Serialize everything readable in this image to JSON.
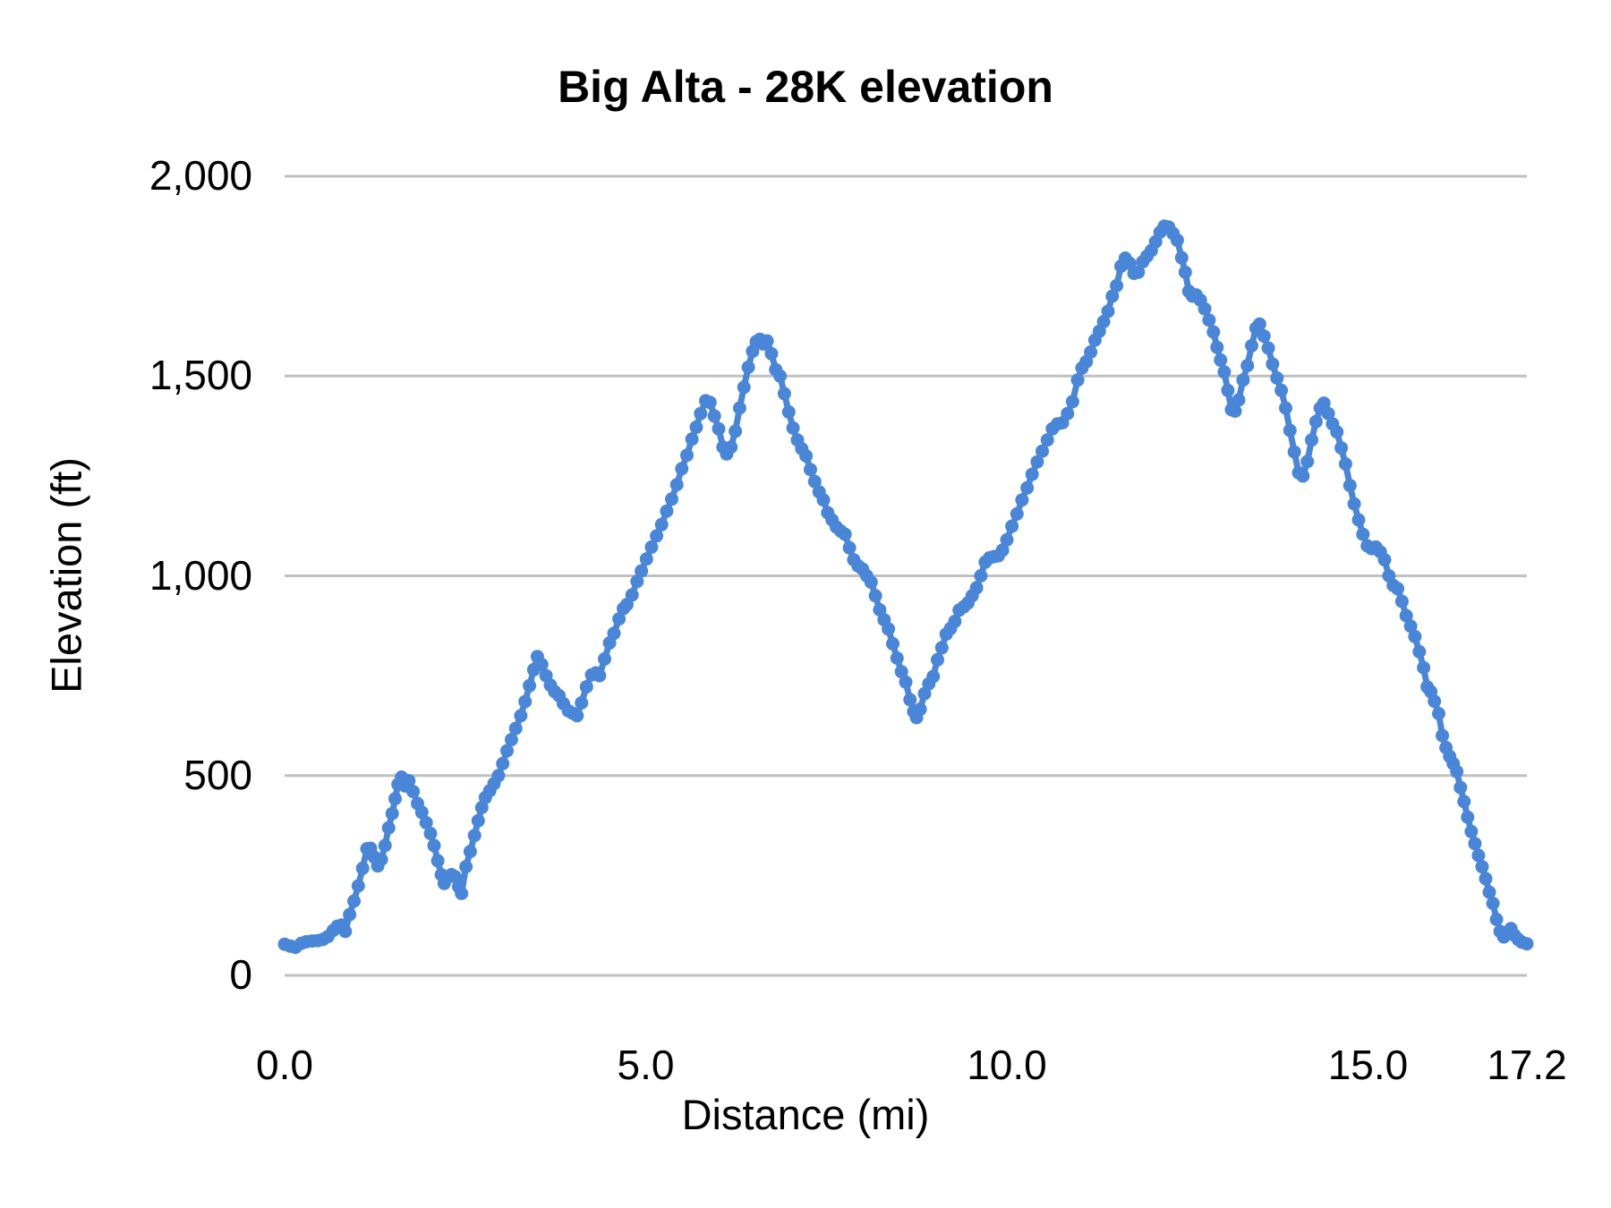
{
  "chart_data": {
    "type": "line",
    "title": "Big Alta - 28K elevation",
    "xlabel": "Distance (mi)",
    "ylabel": "Elevation (ft)",
    "xlim": [
      0,
      17.2
    ],
    "ylim": [
      0,
      2000
    ],
    "grid": true,
    "legend": false,
    "marker": "circle",
    "x_ticks": [
      {
        "value": 0,
        "label": "0.0"
      },
      {
        "value": 5,
        "label": "5.0"
      },
      {
        "value": 10,
        "label": "10.0"
      },
      {
        "value": 15,
        "label": "15.0"
      },
      {
        "value": 17.2,
        "label": "17.2"
      }
    ],
    "y_ticks": [
      {
        "value": 0,
        "label": "0"
      },
      {
        "value": 500,
        "label": "500"
      },
      {
        "value": 1000,
        "label": "1,000"
      },
      {
        "value": 1500,
        "label": "1,500"
      },
      {
        "value": 2000,
        "label": "2,000"
      }
    ],
    "series": [
      {
        "name": "Elevation",
        "color": "#4a86d8",
        "points": [
          [
            0.0,
            78
          ],
          [
            0.08,
            73
          ],
          [
            0.15,
            70
          ],
          [
            0.23,
            80
          ],
          [
            0.3,
            84
          ],
          [
            0.38,
            86
          ],
          [
            0.46,
            87
          ],
          [
            0.53,
            90
          ],
          [
            0.6,
            97
          ],
          [
            0.67,
            112
          ],
          [
            0.73,
            123
          ],
          [
            0.79,
            126
          ],
          [
            0.84,
            110
          ],
          [
            0.9,
            152
          ],
          [
            0.96,
            186
          ],
          [
            1.02,
            224
          ],
          [
            1.08,
            268
          ],
          [
            1.14,
            317
          ],
          [
            1.19,
            318
          ],
          [
            1.24,
            296
          ],
          [
            1.29,
            274
          ],
          [
            1.34,
            290
          ],
          [
            1.39,
            325
          ],
          [
            1.44,
            369
          ],
          [
            1.49,
            405
          ],
          [
            1.53,
            442
          ],
          [
            1.57,
            478
          ],
          [
            1.62,
            496
          ],
          [
            1.67,
            474
          ],
          [
            1.72,
            487
          ],
          [
            1.78,
            460
          ],
          [
            1.84,
            430
          ],
          [
            1.9,
            408
          ],
          [
            1.96,
            382
          ],
          [
            2.02,
            355
          ],
          [
            2.07,
            325
          ],
          [
            2.12,
            287
          ],
          [
            2.17,
            252
          ],
          [
            2.21,
            230
          ],
          [
            2.26,
            246
          ],
          [
            2.31,
            252
          ],
          [
            2.36,
            247
          ],
          [
            2.41,
            222
          ],
          [
            2.45,
            205
          ],
          [
            2.51,
            272
          ],
          [
            2.57,
            310
          ],
          [
            2.63,
            350
          ],
          [
            2.68,
            387
          ],
          [
            2.73,
            420
          ],
          [
            2.78,
            445
          ],
          [
            2.84,
            462
          ],
          [
            2.9,
            480
          ],
          [
            2.96,
            500
          ],
          [
            3.02,
            530
          ],
          [
            3.08,
            562
          ],
          [
            3.14,
            590
          ],
          [
            3.2,
            618
          ],
          [
            3.27,
            650
          ],
          [
            3.33,
            685
          ],
          [
            3.39,
            725
          ],
          [
            3.45,
            765
          ],
          [
            3.5,
            798
          ],
          [
            3.56,
            778
          ],
          [
            3.62,
            750
          ],
          [
            3.68,
            726
          ],
          [
            3.74,
            710
          ],
          [
            3.8,
            700
          ],
          [
            3.86,
            680
          ],
          [
            3.93,
            662
          ],
          [
            3.99,
            656
          ],
          [
            4.05,
            650
          ],
          [
            4.11,
            682
          ],
          [
            4.18,
            722
          ],
          [
            4.25,
            752
          ],
          [
            4.31,
            757
          ],
          [
            4.36,
            750
          ],
          [
            4.43,
            792
          ],
          [
            4.5,
            832
          ],
          [
            4.56,
            856
          ],
          [
            4.63,
            892
          ],
          [
            4.69,
            918
          ],
          [
            4.74,
            928
          ],
          [
            4.81,
            952
          ],
          [
            4.88,
            986
          ],
          [
            4.94,
            1012
          ],
          [
            5.01,
            1042
          ],
          [
            5.08,
            1072
          ],
          [
            5.15,
            1100
          ],
          [
            5.22,
            1128
          ],
          [
            5.29,
            1162
          ],
          [
            5.36,
            1192
          ],
          [
            5.43,
            1228
          ],
          [
            5.5,
            1268
          ],
          [
            5.57,
            1302
          ],
          [
            5.64,
            1342
          ],
          [
            5.7,
            1372
          ],
          [
            5.76,
            1406
          ],
          [
            5.83,
            1438
          ],
          [
            5.89,
            1434
          ],
          [
            5.95,
            1400
          ],
          [
            6.01,
            1368
          ],
          [
            6.07,
            1322
          ],
          [
            6.12,
            1305
          ],
          [
            6.18,
            1322
          ],
          [
            6.24,
            1362
          ],
          [
            6.3,
            1420
          ],
          [
            6.36,
            1472
          ],
          [
            6.42,
            1522
          ],
          [
            6.48,
            1562
          ],
          [
            6.53,
            1586
          ],
          [
            6.58,
            1592
          ],
          [
            6.63,
            1580
          ],
          [
            6.68,
            1588
          ],
          [
            6.74,
            1556
          ],
          [
            6.8,
            1516
          ],
          [
            6.86,
            1500
          ],
          [
            6.92,
            1456
          ],
          [
            6.98,
            1410
          ],
          [
            7.04,
            1370
          ],
          [
            7.1,
            1340
          ],
          [
            7.16,
            1318
          ],
          [
            7.22,
            1300
          ],
          [
            7.28,
            1266
          ],
          [
            7.34,
            1236
          ],
          [
            7.4,
            1210
          ],
          [
            7.46,
            1190
          ],
          [
            7.52,
            1158
          ],
          [
            7.58,
            1140
          ],
          [
            7.64,
            1122
          ],
          [
            7.7,
            1112
          ],
          [
            7.76,
            1104
          ],
          [
            7.82,
            1070
          ],
          [
            7.88,
            1040
          ],
          [
            7.94,
            1025
          ],
          [
            8.0,
            1017
          ],
          [
            8.06,
            1000
          ],
          [
            8.12,
            984
          ],
          [
            8.18,
            950
          ],
          [
            8.24,
            915
          ],
          [
            8.3,
            890
          ],
          [
            8.36,
            867
          ],
          [
            8.42,
            830
          ],
          [
            8.48,
            794
          ],
          [
            8.54,
            760
          ],
          [
            8.6,
            734
          ],
          [
            8.66,
            690
          ],
          [
            8.71,
            660
          ],
          [
            8.75,
            645
          ],
          [
            8.8,
            666
          ],
          [
            8.86,
            705
          ],
          [
            8.92,
            730
          ],
          [
            8.98,
            748
          ],
          [
            9.04,
            790
          ],
          [
            9.1,
            820
          ],
          [
            9.16,
            854
          ],
          [
            9.22,
            868
          ],
          [
            9.28,
            886
          ],
          [
            9.34,
            914
          ],
          [
            9.4,
            922
          ],
          [
            9.46,
            932
          ],
          [
            9.52,
            950
          ],
          [
            9.58,
            970
          ],
          [
            9.64,
            1000
          ],
          [
            9.7,
            1034
          ],
          [
            9.76,
            1045
          ],
          [
            9.82,
            1048
          ],
          [
            9.88,
            1050
          ],
          [
            9.94,
            1064
          ],
          [
            10.0,
            1090
          ],
          [
            10.07,
            1124
          ],
          [
            10.14,
            1155
          ],
          [
            10.21,
            1190
          ],
          [
            10.28,
            1220
          ],
          [
            10.35,
            1254
          ],
          [
            10.42,
            1285
          ],
          [
            10.49,
            1312
          ],
          [
            10.56,
            1340
          ],
          [
            10.63,
            1368
          ],
          [
            10.7,
            1380
          ],
          [
            10.77,
            1383
          ],
          [
            10.84,
            1406
          ],
          [
            10.91,
            1436
          ],
          [
            10.98,
            1490
          ],
          [
            11.04,
            1520
          ],
          [
            11.1,
            1536
          ],
          [
            11.16,
            1560
          ],
          [
            11.22,
            1590
          ],
          [
            11.28,
            1612
          ],
          [
            11.34,
            1636
          ],
          [
            11.4,
            1662
          ],
          [
            11.46,
            1700
          ],
          [
            11.52,
            1726
          ],
          [
            11.58,
            1775
          ],
          [
            11.64,
            1795
          ],
          [
            11.7,
            1782
          ],
          [
            11.76,
            1757
          ],
          [
            11.82,
            1760
          ],
          [
            11.88,
            1786
          ],
          [
            11.94,
            1800
          ],
          [
            12.0,
            1814
          ],
          [
            12.06,
            1836
          ],
          [
            12.12,
            1860
          ],
          [
            12.18,
            1875
          ],
          [
            12.24,
            1873
          ],
          [
            12.3,
            1857
          ],
          [
            12.36,
            1840
          ],
          [
            12.42,
            1796
          ],
          [
            12.47,
            1760
          ],
          [
            12.52,
            1712
          ],
          [
            12.57,
            1700
          ],
          [
            12.62,
            1703
          ],
          [
            12.68,
            1690
          ],
          [
            12.74,
            1668
          ],
          [
            12.8,
            1640
          ],
          [
            12.86,
            1610
          ],
          [
            12.91,
            1572
          ],
          [
            12.96,
            1540
          ],
          [
            13.01,
            1510
          ],
          [
            13.06,
            1464
          ],
          [
            13.11,
            1416
          ],
          [
            13.16,
            1412
          ],
          [
            13.21,
            1440
          ],
          [
            13.27,
            1490
          ],
          [
            13.33,
            1526
          ],
          [
            13.39,
            1576
          ],
          [
            13.45,
            1620
          ],
          [
            13.5,
            1630
          ],
          [
            13.56,
            1600
          ],
          [
            13.62,
            1570
          ],
          [
            13.68,
            1530
          ],
          [
            13.74,
            1495
          ],
          [
            13.8,
            1464
          ],
          [
            13.86,
            1420
          ],
          [
            13.92,
            1364
          ],
          [
            13.98,
            1310
          ],
          [
            14.04,
            1258
          ],
          [
            14.1,
            1250
          ],
          [
            14.16,
            1286
          ],
          [
            14.22,
            1340
          ],
          [
            14.28,
            1386
          ],
          [
            14.34,
            1420
          ],
          [
            14.39,
            1432
          ],
          [
            14.45,
            1406
          ],
          [
            14.51,
            1380
          ],
          [
            14.57,
            1360
          ],
          [
            14.63,
            1320
          ],
          [
            14.69,
            1280
          ],
          [
            14.75,
            1226
          ],
          [
            14.81,
            1180
          ],
          [
            14.87,
            1140
          ],
          [
            14.93,
            1104
          ],
          [
            14.99,
            1075
          ],
          [
            15.05,
            1068
          ],
          [
            15.11,
            1072
          ],
          [
            15.17,
            1060
          ],
          [
            15.23,
            1040
          ],
          [
            15.29,
            1000
          ],
          [
            15.35,
            976
          ],
          [
            15.41,
            968
          ],
          [
            15.47,
            936
          ],
          [
            15.53,
            900
          ],
          [
            15.59,
            874
          ],
          [
            15.65,
            848
          ],
          [
            15.71,
            810
          ],
          [
            15.77,
            770
          ],
          [
            15.82,
            722
          ],
          [
            15.87,
            710
          ],
          [
            15.92,
            686
          ],
          [
            15.98,
            655
          ],
          [
            16.03,
            600
          ],
          [
            16.08,
            570
          ],
          [
            16.13,
            548
          ],
          [
            16.18,
            530
          ],
          [
            16.23,
            510
          ],
          [
            16.28,
            470
          ],
          [
            16.33,
            435
          ],
          [
            16.38,
            396
          ],
          [
            16.43,
            360
          ],
          [
            16.48,
            330
          ],
          [
            16.53,
            300
          ],
          [
            16.58,
            272
          ],
          [
            16.63,
            242
          ],
          [
            16.68,
            208
          ],
          [
            16.73,
            180
          ],
          [
            16.78,
            140
          ],
          [
            16.83,
            110
          ],
          [
            16.88,
            96
          ],
          [
            16.93,
            108
          ],
          [
            16.98,
            117
          ],
          [
            17.03,
            100
          ],
          [
            17.08,
            90
          ],
          [
            17.13,
            83
          ],
          [
            17.2,
            79
          ]
        ]
      }
    ]
  },
  "style": {
    "accent": "#4a86d8",
    "gridline": "#c0c0c0",
    "text": "#000000",
    "background": "#ffffff"
  }
}
